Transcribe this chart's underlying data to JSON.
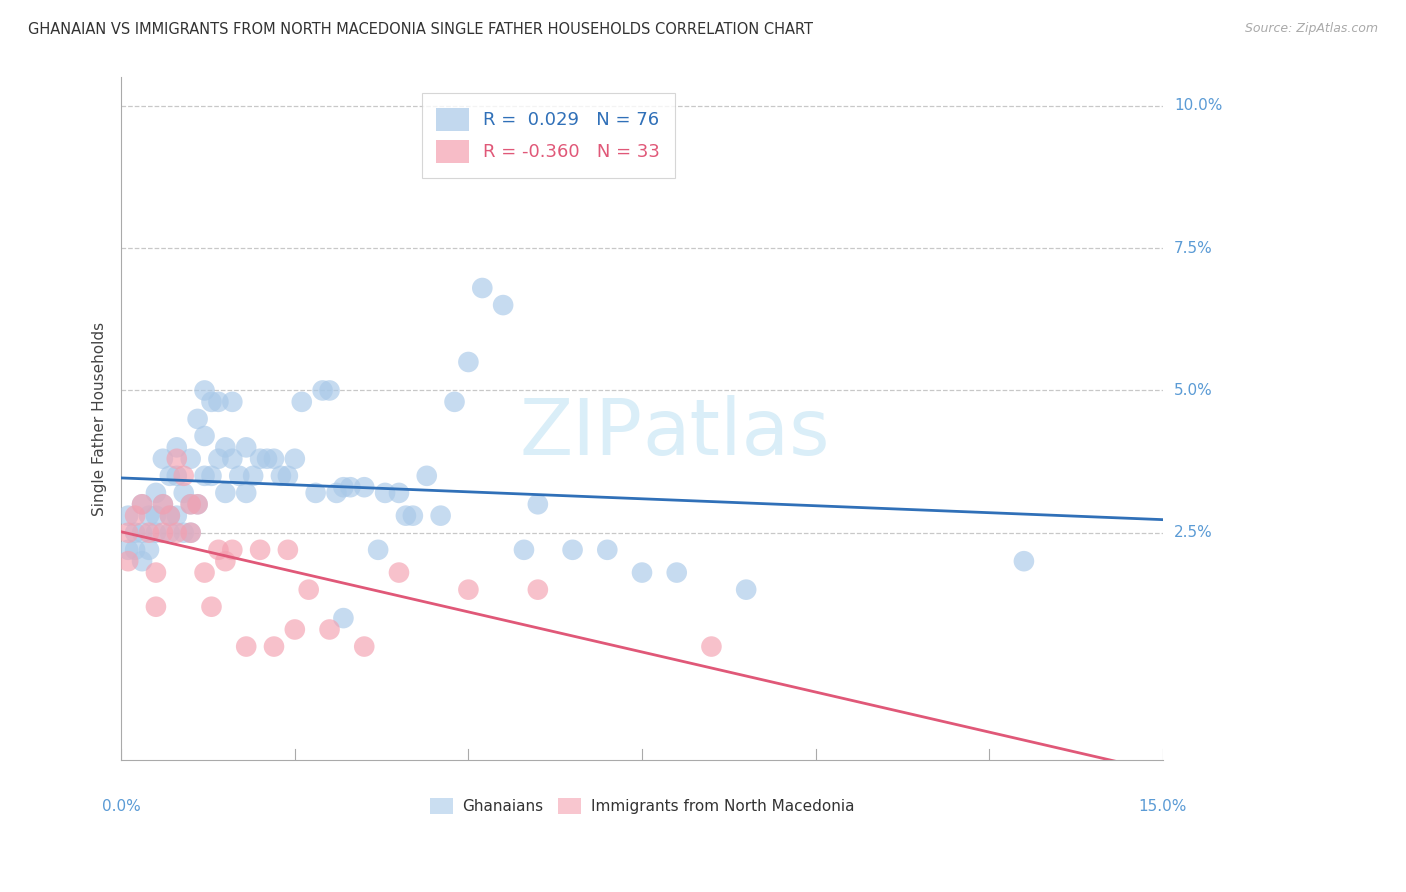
{
  "title": "GHANAIAN VS IMMIGRANTS FROM NORTH MACEDONIA SINGLE FATHER HOUSEHOLDS CORRELATION CHART",
  "source": "Source: ZipAtlas.com",
  "ylabel": "Single Father Households",
  "ytick_labels": [
    "10.0%",
    "7.5%",
    "5.0%",
    "2.5%"
  ],
  "ytick_values": [
    0.1,
    0.075,
    0.05,
    0.025
  ],
  "xmin": 0.0,
  "xmax": 0.15,
  "ymin": -0.015,
  "ymax": 0.105,
  "legend_blue_R": "0.029",
  "legend_blue_N": "76",
  "legend_pink_R": "-0.360",
  "legend_pink_N": "33",
  "blue_color": "#a8c8e8",
  "pink_color": "#f4a0b0",
  "trendline_blue_color": "#3070b8",
  "trendline_pink_color": "#e05878",
  "watermark_color": "#daeef8",
  "blue_scatter_x": [
    0.001,
    0.001,
    0.002,
    0.002,
    0.003,
    0.003,
    0.003,
    0.004,
    0.004,
    0.005,
    0.005,
    0.005,
    0.006,
    0.006,
    0.007,
    0.007,
    0.007,
    0.008,
    0.008,
    0.008,
    0.009,
    0.009,
    0.01,
    0.01,
    0.01,
    0.011,
    0.011,
    0.012,
    0.012,
    0.012,
    0.013,
    0.013,
    0.014,
    0.014,
    0.015,
    0.015,
    0.016,
    0.016,
    0.017,
    0.018,
    0.018,
    0.019,
    0.02,
    0.021,
    0.022,
    0.023,
    0.024,
    0.025,
    0.026,
    0.028,
    0.029,
    0.03,
    0.031,
    0.032,
    0.033,
    0.035,
    0.037,
    0.038,
    0.04,
    0.041,
    0.042,
    0.044,
    0.046,
    0.048,
    0.05,
    0.052,
    0.055,
    0.058,
    0.06,
    0.065,
    0.07,
    0.075,
    0.08,
    0.09,
    0.13,
    0.032
  ],
  "blue_scatter_y": [
    0.022,
    0.028,
    0.025,
    0.022,
    0.03,
    0.025,
    0.02,
    0.028,
    0.022,
    0.032,
    0.028,
    0.025,
    0.038,
    0.03,
    0.035,
    0.028,
    0.025,
    0.04,
    0.035,
    0.028,
    0.032,
    0.025,
    0.038,
    0.03,
    0.025,
    0.045,
    0.03,
    0.05,
    0.042,
    0.035,
    0.048,
    0.035,
    0.048,
    0.038,
    0.04,
    0.032,
    0.048,
    0.038,
    0.035,
    0.04,
    0.032,
    0.035,
    0.038,
    0.038,
    0.038,
    0.035,
    0.035,
    0.038,
    0.048,
    0.032,
    0.05,
    0.05,
    0.032,
    0.033,
    0.033,
    0.033,
    0.022,
    0.032,
    0.032,
    0.028,
    0.028,
    0.035,
    0.028,
    0.048,
    0.055,
    0.068,
    0.065,
    0.022,
    0.03,
    0.022,
    0.022,
    0.018,
    0.018,
    0.015,
    0.02,
    0.01
  ],
  "pink_scatter_x": [
    0.001,
    0.001,
    0.002,
    0.003,
    0.004,
    0.005,
    0.005,
    0.006,
    0.006,
    0.007,
    0.008,
    0.008,
    0.009,
    0.01,
    0.01,
    0.011,
    0.012,
    0.013,
    0.014,
    0.015,
    0.016,
    0.018,
    0.02,
    0.022,
    0.024,
    0.025,
    0.027,
    0.03,
    0.035,
    0.04,
    0.05,
    0.06,
    0.085
  ],
  "pink_scatter_y": [
    0.025,
    0.02,
    0.028,
    0.03,
    0.025,
    0.018,
    0.012,
    0.03,
    0.025,
    0.028,
    0.025,
    0.038,
    0.035,
    0.03,
    0.025,
    0.03,
    0.018,
    0.012,
    0.022,
    0.02,
    0.022,
    0.005,
    0.022,
    0.005,
    0.022,
    0.008,
    0.015,
    0.008,
    0.005,
    0.018,
    0.015,
    0.015,
    0.005
  ],
  "xtick_positions": [
    0.0,
    0.025,
    0.05,
    0.075,
    0.1,
    0.125,
    0.15
  ]
}
